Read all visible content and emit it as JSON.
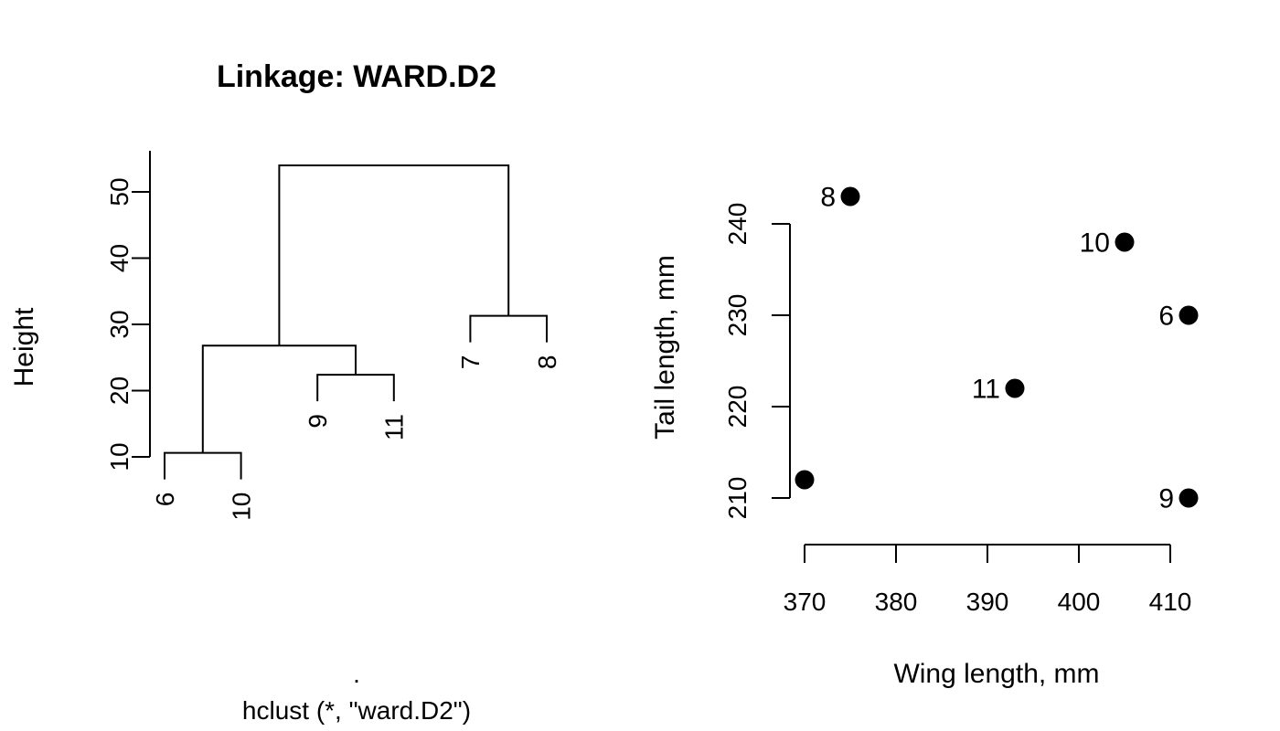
{
  "chart_data": [
    {
      "type": "dendrogram",
      "title": "Linkage: WARD.D2",
      "ylabel": "Height",
      "xlabel": ".",
      "sublabel": "hclust (*, \"ward.D2\")",
      "yticks": [
        10,
        20,
        30,
        40,
        50
      ],
      "leaves": [
        {
          "label": "6",
          "height": 10.6
        },
        {
          "label": "10",
          "height": 10.6
        },
        {
          "label": "9",
          "height": 22.4
        },
        {
          "label": "11",
          "height": 22.4
        },
        {
          "label": "7",
          "height": 31.3
        },
        {
          "label": "8",
          "height": 31.3
        }
      ],
      "merges": [
        {
          "left": "leaf:0",
          "right": "leaf:1",
          "height": 10.6
        },
        {
          "left": "leaf:2",
          "right": "leaf:3",
          "height": 22.4
        },
        {
          "left": "node:0",
          "right": "node:1",
          "height": 26.8
        },
        {
          "left": "leaf:4",
          "right": "leaf:5",
          "height": 31.3
        },
        {
          "left": "node:2",
          "right": "node:3",
          "height": 54.0
        }
      ]
    },
    {
      "type": "scatter",
      "xlabel": "Wing length, mm",
      "ylabel": "Tail length, mm",
      "xlim": [
        368.5,
        413.5
      ],
      "ylim": [
        206,
        244.5
      ],
      "xticks": [
        370,
        380,
        390,
        400,
        410
      ],
      "yticks": [
        210,
        220,
        230,
        240
      ],
      "points": [
        {
          "x": 370,
          "y": 212,
          "label": ""
        },
        {
          "x": 375,
          "y": 243,
          "label": "8"
        },
        {
          "x": 405,
          "y": 238,
          "label": "10"
        },
        {
          "x": 412,
          "y": 230,
          "label": "6"
        },
        {
          "x": 393,
          "y": 222,
          "label": "11"
        },
        {
          "x": 412,
          "y": 210,
          "label": "9"
        }
      ]
    }
  ]
}
